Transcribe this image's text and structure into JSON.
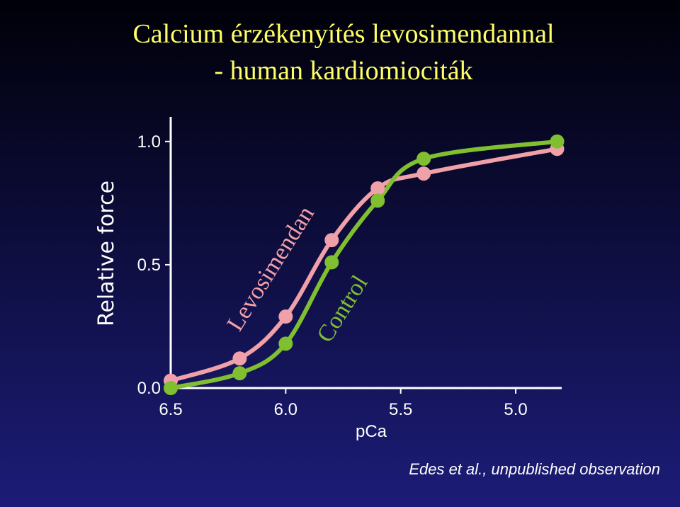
{
  "chart_data": {
    "type": "line",
    "title": [
      "Calcium érzékenyítés levosimendannal",
      "- human kardiomiociták"
    ],
    "x_label": "pCa",
    "y_label": "Relative force",
    "note": "Edes et al., unpublished observation",
    "x": [
      6.5,
      6.2,
      6.0,
      5.8,
      5.6,
      5.4,
      4.82
    ],
    "series": [
      {
        "name": "Levosimendan",
        "color": "#f0a0a8",
        "values": [
          0.03,
          0.12,
          0.29,
          0.6,
          0.81,
          0.87,
          0.97
        ]
      },
      {
        "name": "Control",
        "color": "#80c030",
        "values": [
          0.0,
          0.06,
          0.18,
          0.51,
          0.76,
          0.93,
          1.0
        ]
      }
    ],
    "xlim": [
      6.5,
      4.8
    ],
    "ylim": [
      0,
      1.1
    ],
    "xticks": [
      6.5,
      {
        "value": 6,
        "label": "6.0"
      },
      5.5,
      {
        "value": 5,
        "label": "5.0"
      }
    ],
    "yticks": [
      {
        "value": 0,
        "label": "0.0"
      },
      0.5,
      {
        "value": 1,
        "label": "1.0"
      }
    ]
  }
}
